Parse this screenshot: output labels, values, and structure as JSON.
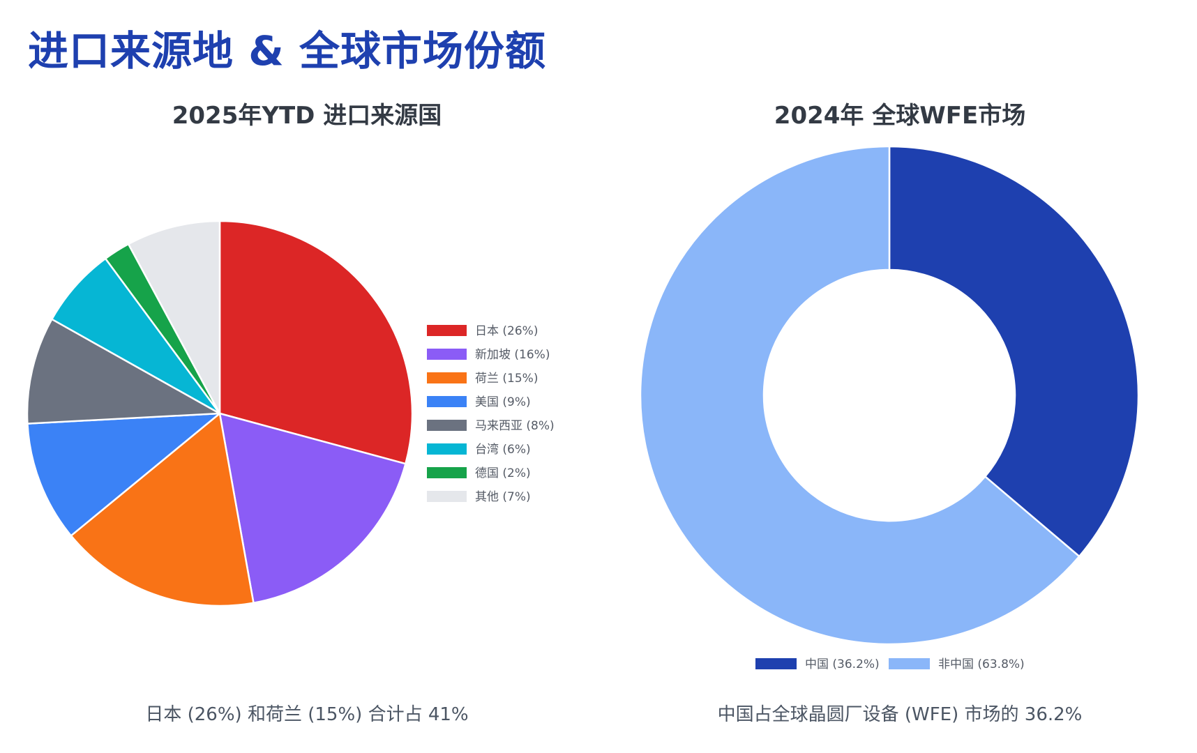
{
  "page": {
    "title": "进口来源地 & 全球市场份额"
  },
  "chart_data": [
    {
      "type": "pie",
      "title": "2025年YTD 进口来源国",
      "caption": "日本 (26%) 和荷兰 (15%) 合计占 41%",
      "legend_position": "right",
      "slices": [
        {
          "label": "日本",
          "value": 26,
          "legend": "日本 (26%)",
          "color": "#dc2626"
        },
        {
          "label": "新加坡",
          "value": 16,
          "legend": "新加坡 (16%)",
          "color": "#8b5cf6"
        },
        {
          "label": "荷兰",
          "value": 15,
          "legend": "荷兰 (15%)",
          "color": "#f97316"
        },
        {
          "label": "美国",
          "value": 9,
          "legend": "美国 (9%)",
          "color": "#3b82f6"
        },
        {
          "label": "马来西亚",
          "value": 8,
          "legend": "马来西亚 (8%)",
          "color": "#6b7280"
        },
        {
          "label": "台湾",
          "value": 6,
          "legend": "台湾 (6%)",
          "color": "#06b6d4"
        },
        {
          "label": "德国",
          "value": 2,
          "legend": "德国 (2%)",
          "color": "#16a34a"
        },
        {
          "label": "其他",
          "value": 7,
          "legend": "其他 (7%)",
          "color": "#e5e7eb"
        }
      ]
    },
    {
      "type": "pie",
      "donut": true,
      "title": "2024年 全球WFE市场",
      "caption": "中国占全球晶圆厂设备 (WFE) 市场的 36.2%",
      "legend_position": "bottom",
      "slices": [
        {
          "label": "中国",
          "value": 36.2,
          "legend": "中国 (36.2%)",
          "color": "#1e40af"
        },
        {
          "label": "非中国",
          "value": 63.8,
          "legend": "非中国 (63.8%)",
          "color": "#8ab6f9"
        }
      ]
    }
  ]
}
